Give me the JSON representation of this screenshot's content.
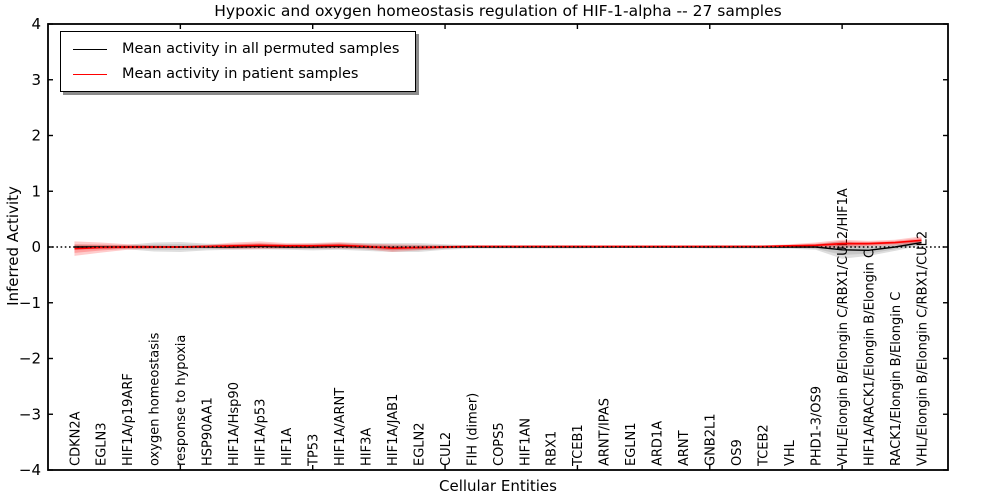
{
  "chart_data": {
    "type": "line",
    "title": "Hypoxic and oxygen homeostasis regulation of HIF-1-alpha -- 27 samples",
    "xlabel": "Cellular Entities",
    "ylabel": "Inferred Activity",
    "ylim": [
      -4,
      4
    ],
    "yticks": [
      -4,
      -3,
      -2,
      -1,
      0,
      1,
      2,
      3,
      4
    ],
    "xtick_positions": [
      5,
      10,
      15,
      20,
      25,
      30
    ],
    "grid": false,
    "legend_position": "upper left",
    "zero_line_style": "dotted",
    "categories": [
      "CDKN2A",
      "EGLN3",
      "HIF1A/p19ARF",
      "oxygen homeostasis",
      "response to hypoxia",
      "HSP90AA1",
      "HIF1A/Hsp90",
      "HIF1A/p53",
      "HIF1A",
      "TP53",
      "HIF1A/ARNT",
      "HIF3A",
      "HIF1A/JAB1",
      "EGLN2",
      "CUL2",
      "FIH (dimer)",
      "COPS5",
      "HIF1AN",
      "RBX1",
      "TCEB1",
      "ARNT/IPAS",
      "EGLN1",
      "ARD1A",
      "ARNT",
      "GNB2L1",
      "OS9",
      "TCEB2",
      "VHL",
      "PHD1-3/OS9",
      "VHL/Elongin B/Elongin C/RBX1/CUL2/HIF1A",
      "HIF1A/RACK1/Elongin B/Elongin C",
      "RACK1/Elongin B/Elongin C",
      "VHL/Elongin B/Elongin C/RBX1/CUL2"
    ],
    "series": [
      {
        "name": "Mean activity in all permuted samples",
        "color": "#000000",
        "band_color": "#000000",
        "values": [
          0.0,
          0.0,
          0.0,
          0.0,
          0.0,
          0.0,
          0.0,
          0.01,
          0.0,
          0.0,
          0.01,
          0.0,
          -0.01,
          -0.01,
          0.0,
          0.0,
          0.0,
          0.0,
          0.0,
          0.0,
          0.0,
          0.0,
          0.0,
          0.0,
          0.0,
          0.0,
          0.0,
          0.0,
          0.0,
          -0.05,
          -0.06,
          0.0,
          0.08
        ],
        "band": [
          0.05,
          0.04,
          0.04,
          0.08,
          0.09,
          0.06,
          0.05,
          0.05,
          0.05,
          0.06,
          0.06,
          0.07,
          0.08,
          0.08,
          0.05,
          0.03,
          0.03,
          0.03,
          0.03,
          0.03,
          0.02,
          0.02,
          0.02,
          0.02,
          0.03,
          0.03,
          0.03,
          0.03,
          0.05,
          0.16,
          0.1,
          0.07,
          0.05
        ]
      },
      {
        "name": "Mean activity in patient samples",
        "color": "#ff0000",
        "band_color": "#ff0000",
        "values": [
          -0.03,
          -0.01,
          0.0,
          0.0,
          0.0,
          0.01,
          0.02,
          0.03,
          0.02,
          0.02,
          0.03,
          0.01,
          -0.02,
          -0.01,
          0.0,
          0.01,
          0.01,
          0.01,
          0.01,
          0.01,
          0.01,
          0.01,
          0.01,
          0.01,
          0.01,
          0.01,
          0.01,
          0.02,
          0.03,
          0.06,
          0.06,
          0.08,
          0.12
        ],
        "band": [
          0.13,
          0.09,
          0.05,
          0.03,
          0.02,
          0.03,
          0.06,
          0.07,
          0.05,
          0.05,
          0.06,
          0.05,
          0.07,
          0.05,
          0.03,
          0.02,
          0.02,
          0.02,
          0.02,
          0.02,
          0.02,
          0.02,
          0.02,
          0.02,
          0.02,
          0.02,
          0.02,
          0.03,
          0.05,
          0.07,
          0.05,
          0.05,
          0.07
        ]
      }
    ]
  }
}
